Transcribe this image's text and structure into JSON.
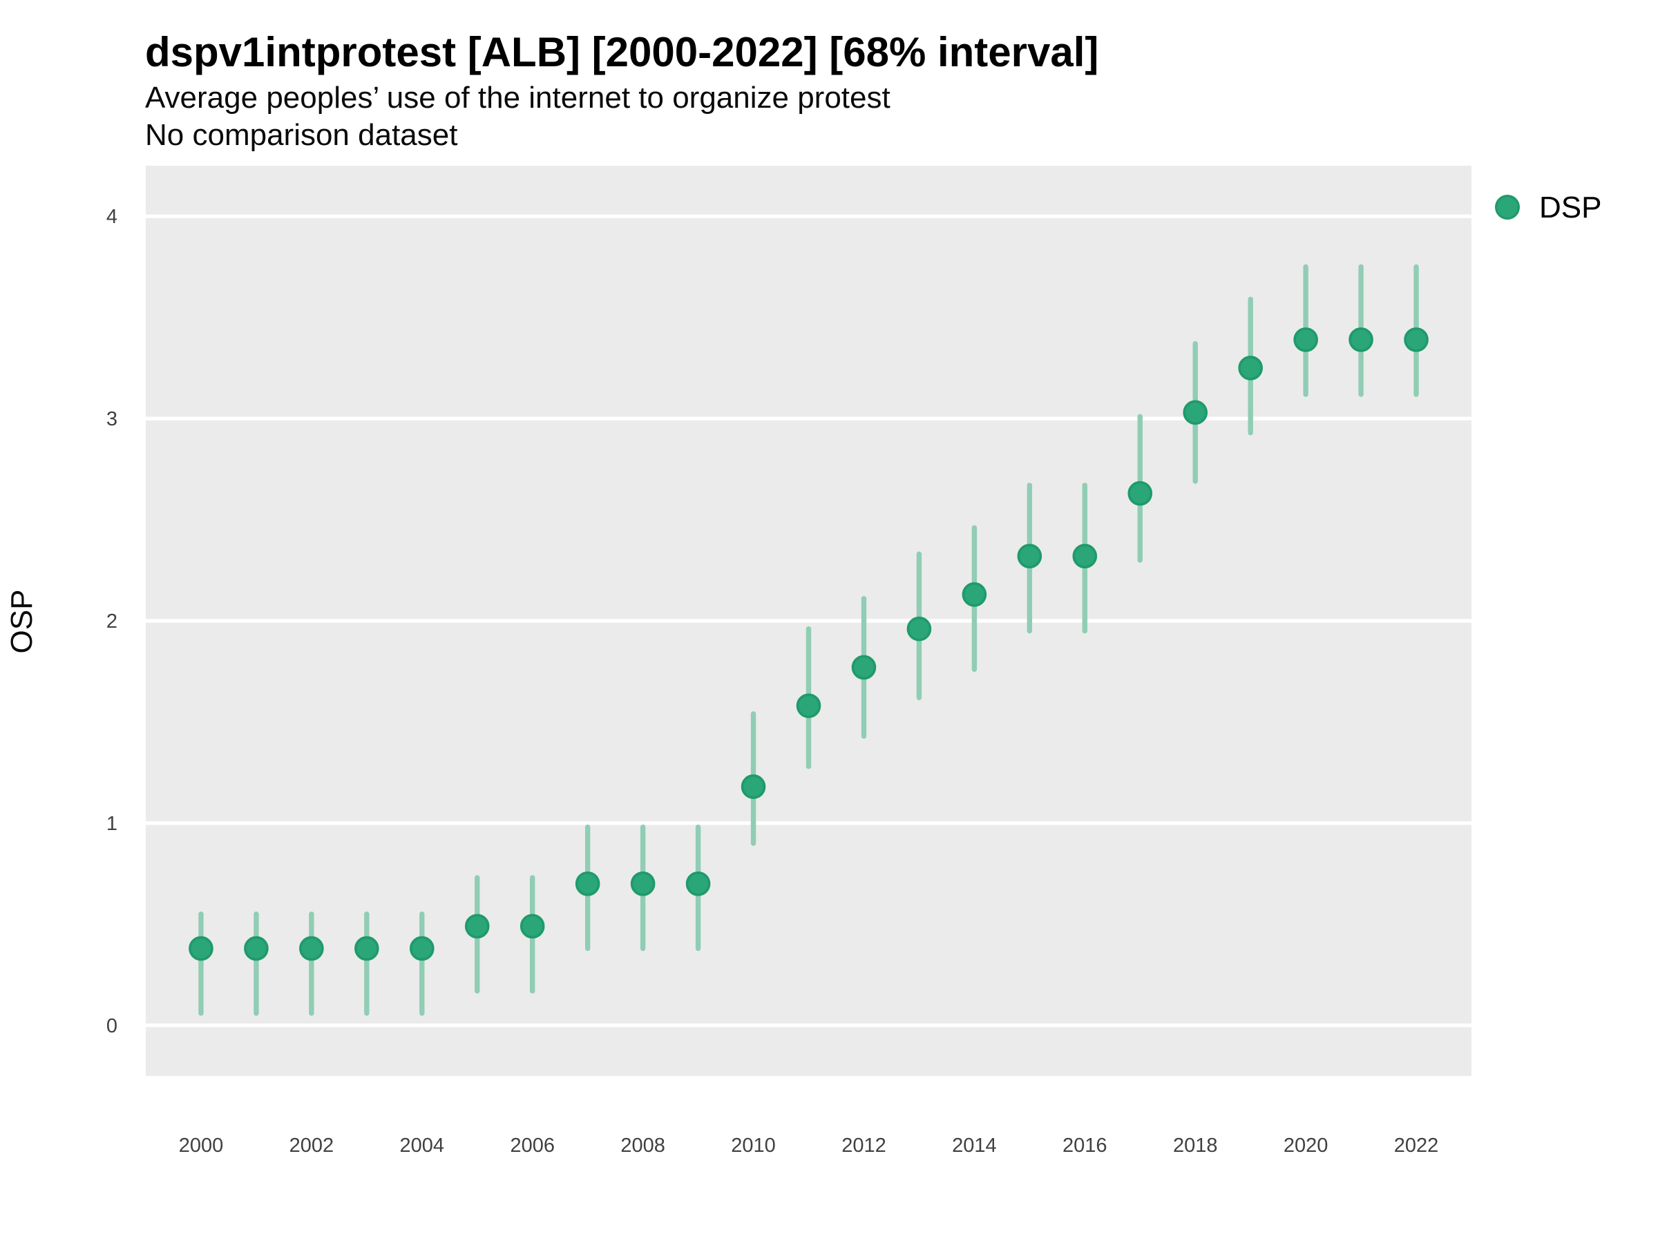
{
  "chart_data": {
    "type": "scatter",
    "subtype": "pointrange",
    "title": "dspv1intprotest [ALB] [2000-2022] [68% interval]",
    "subtitle": "Average peoples’ use of the internet to organize protest",
    "subtitle2": "No comparison dataset",
    "xlabel": "",
    "ylabel": "OSP",
    "interval_label": "68% interval",
    "legend": {
      "position": "right-top",
      "entries": [
        {
          "label": "DSP",
          "marker": "circle"
        }
      ]
    },
    "x": [
      2000,
      2001,
      2002,
      2003,
      2004,
      2005,
      2006,
      2007,
      2008,
      2009,
      2010,
      2011,
      2012,
      2013,
      2014,
      2015,
      2016,
      2017,
      2018,
      2019,
      2020,
      2021,
      2022
    ],
    "series": [
      {
        "name": "DSP",
        "values": [
          0.38,
          0.38,
          0.38,
          0.38,
          0.38,
          0.49,
          0.49,
          0.7,
          0.7,
          0.7,
          1.18,
          1.58,
          1.77,
          1.96,
          2.13,
          2.32,
          2.32,
          2.63,
          3.03,
          3.25,
          3.39,
          3.39,
          3.39
        ],
        "lower": [
          0.06,
          0.06,
          0.06,
          0.06,
          0.06,
          0.17,
          0.17,
          0.38,
          0.38,
          0.38,
          0.9,
          1.28,
          1.43,
          1.62,
          1.76,
          1.95,
          1.95,
          2.3,
          2.69,
          2.93,
          3.12,
          3.12,
          3.12
        ],
        "upper": [
          0.55,
          0.55,
          0.55,
          0.55,
          0.55,
          0.73,
          0.73,
          0.98,
          0.98,
          0.98,
          1.54,
          1.96,
          2.11,
          2.33,
          2.46,
          2.67,
          2.67,
          3.01,
          3.37,
          3.59,
          3.75,
          3.75,
          3.75
        ]
      }
    ],
    "x_ticks": [
      2000,
      2002,
      2004,
      2006,
      2008,
      2010,
      2012,
      2014,
      2016,
      2018,
      2020,
      2022
    ],
    "y_ticks": [
      0,
      1,
      2,
      3,
      4
    ],
    "xlim": [
      1999,
      2023
    ],
    "ylim": [
      -0.25,
      4.25
    ],
    "grid": "horizontal-major-only",
    "legend_label": "DSP",
    "colors": {
      "point_fill": "#2AA678",
      "point_stroke": "#1F9A6C",
      "interval_bar": "#90CDB4",
      "panel_background": "#EBEBEB",
      "gridline": "#FFFFFF",
      "title_text": "#000000",
      "tick_label": "#404040"
    }
  }
}
